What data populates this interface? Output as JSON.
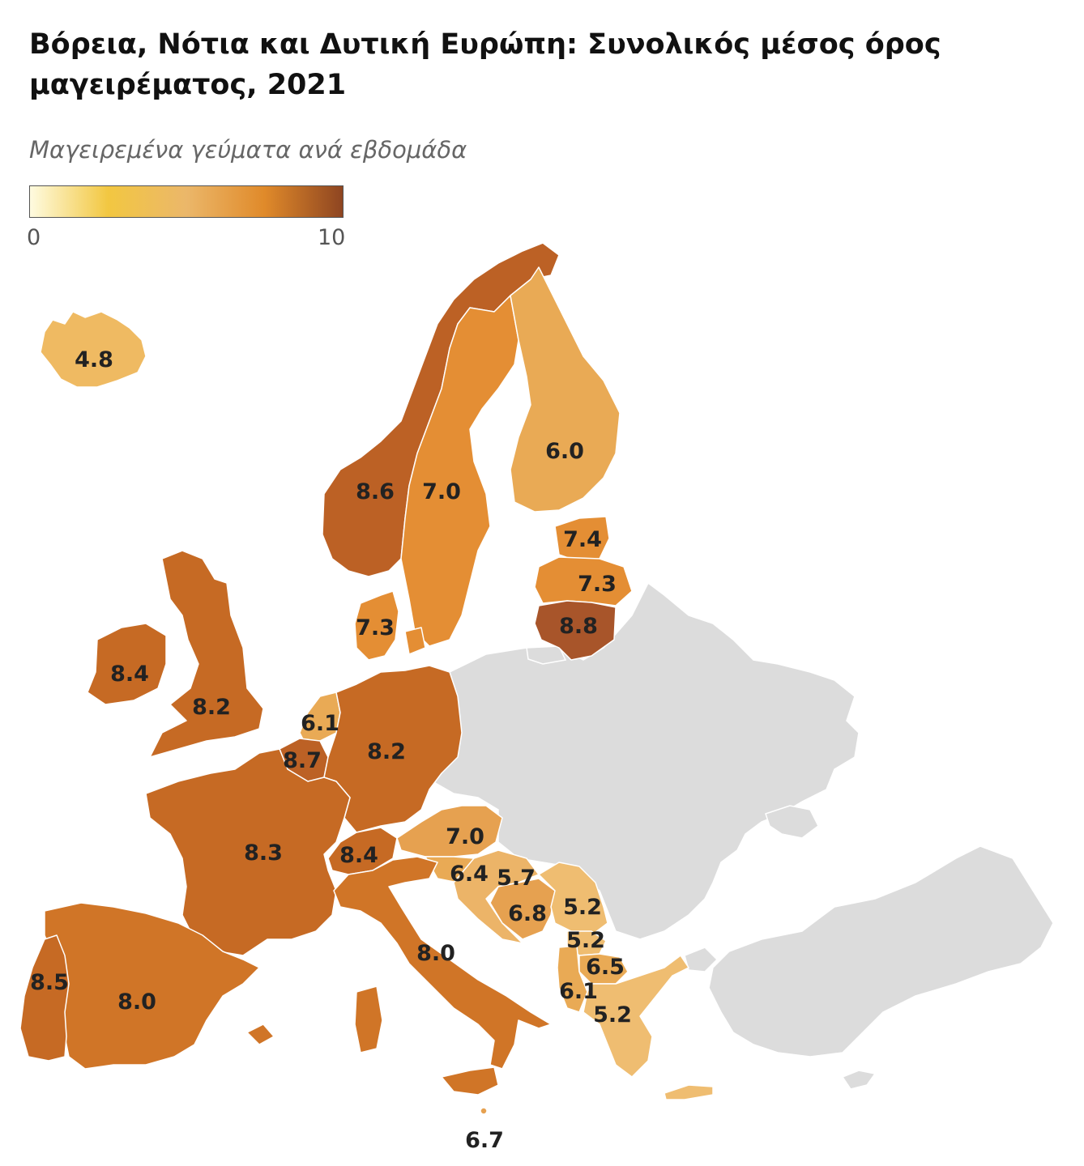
{
  "title": "Βόρεια, Νότια και Δυτική Ευρώπη: Συνολικός μέσος όρος μαγειρέματος, 2021",
  "legend": {
    "subtitle": "Μαγειρεμένα γεύματα ανά εβδομάδα",
    "min_label": "0",
    "max_label": "10",
    "min": 0,
    "max": 10,
    "colors": [
      "#fefbe0",
      "#f2c741",
      "#ebb76a",
      "#e08a2a",
      "#8e4521"
    ]
  },
  "colors": {
    "no_data": "#dcdcdc",
    "border": "#ffffff"
  },
  "map_data": {
    "countries": [
      {
        "id": "iceland",
        "value": "4.8",
        "color": "#efba62"
      },
      {
        "id": "norway",
        "value": "8.6",
        "color": "#bc6125"
      },
      {
        "id": "sweden",
        "value": "7.0",
        "color": "#e48e34"
      },
      {
        "id": "finland",
        "value": "6.0",
        "color": "#e9aa55"
      },
      {
        "id": "estonia",
        "value": "7.4",
        "color": "#e48e34"
      },
      {
        "id": "latvia",
        "value": "7.3",
        "color": "#e48e34"
      },
      {
        "id": "lithuania",
        "value": "8.8",
        "color": "#a8552a"
      },
      {
        "id": "denmark",
        "value": "7.3",
        "color": "#e48e34"
      },
      {
        "id": "ireland",
        "value": "8.4",
        "color": "#c66a24"
      },
      {
        "id": "uk",
        "value": "8.2",
        "color": "#c66a24"
      },
      {
        "id": "netherlands",
        "value": "6.1",
        "color": "#e9aa55"
      },
      {
        "id": "belgium",
        "value": "8.7",
        "color": "#bc6125"
      },
      {
        "id": "germany",
        "value": "8.2",
        "color": "#c66a24"
      },
      {
        "id": "france",
        "value": "8.3",
        "color": "#c66a24"
      },
      {
        "id": "switzerland",
        "value": "8.4",
        "color": "#c66a24"
      },
      {
        "id": "austria",
        "value": "7.0",
        "color": "#e6a150"
      },
      {
        "id": "slovenia",
        "value": "6.4",
        "color": "#e9aa55"
      },
      {
        "id": "croatia",
        "value": "5.7",
        "color": "#ecb468"
      },
      {
        "id": "bosnia",
        "value": "6.8",
        "color": "#e6a150"
      },
      {
        "id": "serbia",
        "value": "5.2",
        "color": "#efbd71"
      },
      {
        "id": "kosovo",
        "value": "5.2",
        "color": "#efbd71"
      },
      {
        "id": "north_macedonia",
        "value": "6.5",
        "color": "#e9aa55"
      },
      {
        "id": "albania",
        "value": "6.1",
        "color": "#e9aa55"
      },
      {
        "id": "greece",
        "value": "5.2",
        "color": "#efbd71"
      },
      {
        "id": "italy",
        "value": "8.0",
        "color": "#d07527"
      },
      {
        "id": "spain",
        "value": "8.0",
        "color": "#d07527"
      },
      {
        "id": "portugal",
        "value": "8.5",
        "color": "#c66a24"
      },
      {
        "id": "malta",
        "value": "6.7",
        "color": "#e6a150"
      }
    ]
  }
}
